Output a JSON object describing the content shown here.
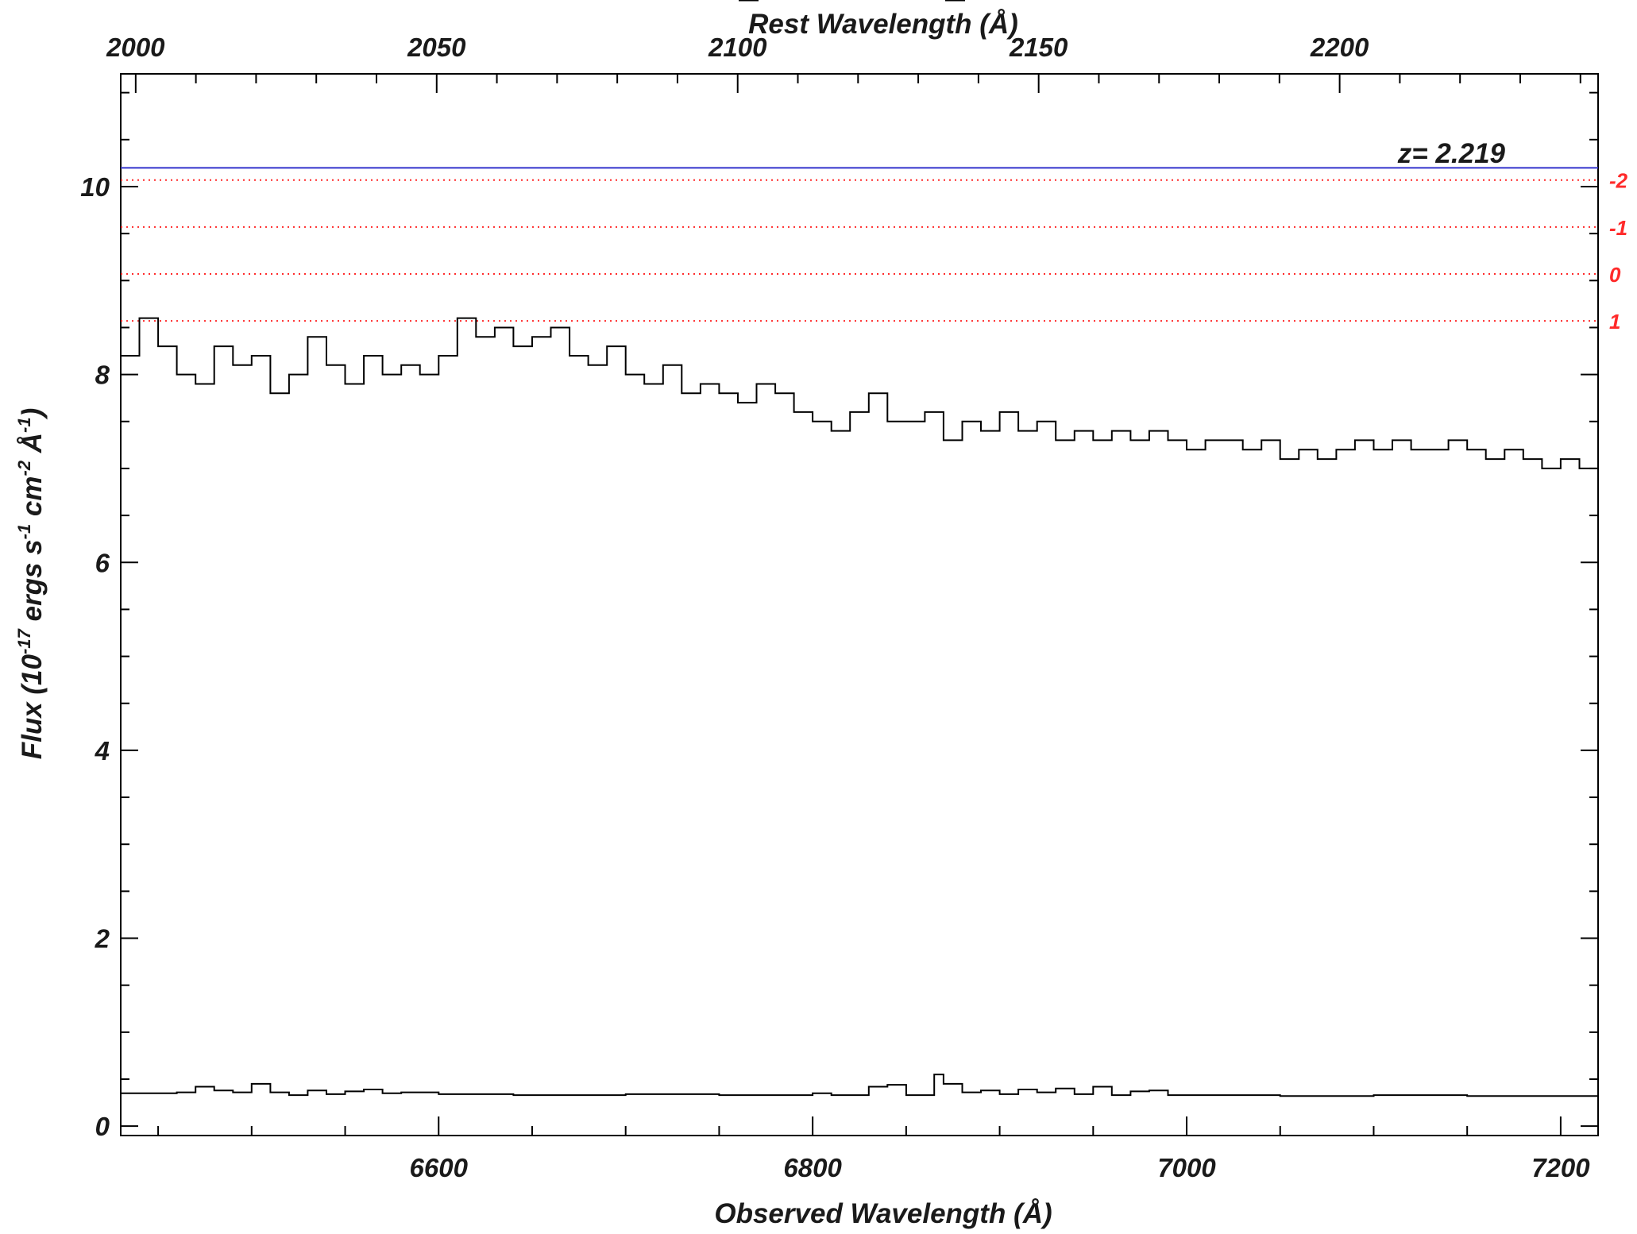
{
  "chart_data": {
    "type": "line",
    "x_top_label": "Rest Wavelength (Å)",
    "x_bottom_label": "Observed Wavelength (Å)",
    "y_label_parts": [
      "Flux (10",
      "-17",
      " ergs s",
      "-1",
      " cm",
      "-2",
      " Å",
      "-1",
      ")"
    ],
    "annotation": "z= 2.219",
    "redshift": 2.219,
    "xlim": [
      6430,
      7220
    ],
    "ylim": [
      -0.1,
      11.2
    ],
    "x_ticks_bottom": [
      6600,
      6800,
      7000,
      7200
    ],
    "x_ticks_top": [
      2000,
      2050,
      2100,
      2150,
      2200
    ],
    "y_ticks": [
      0,
      2,
      4,
      6,
      8,
      10
    ],
    "blue_line": {
      "y": 10.2,
      "color": "#3333cc"
    },
    "dotted_lines": [
      {
        "label": "-2",
        "y": 10.07
      },
      {
        "label": "-1",
        "y": 9.57
      },
      {
        "label": "0",
        "y": 9.07
      },
      {
        "label": "1",
        "y": 8.57
      }
    ],
    "dotted_color": "#ff2a2a",
    "series": [
      {
        "role": "flux",
        "color": "#000000",
        "x": [
          6430,
          6440,
          6450,
          6460,
          6470,
          6480,
          6490,
          6500,
          6510,
          6520,
          6530,
          6540,
          6550,
          6560,
          6570,
          6580,
          6590,
          6600,
          6610,
          6620,
          6630,
          6640,
          6650,
          6660,
          6670,
          6680,
          6690,
          6700,
          6710,
          6720,
          6730,
          6740,
          6750,
          6760,
          6770,
          6780,
          6790,
          6800,
          6810,
          6820,
          6830,
          6840,
          6850,
          6860,
          6870,
          6880,
          6890,
          6900,
          6910,
          6920,
          6930,
          6940,
          6950,
          6960,
          6970,
          6980,
          6990,
          7000,
          7010,
          7020,
          7030,
          7040,
          7050,
          7060,
          7070,
          7080,
          7090,
          7100,
          7110,
          7120,
          7130,
          7140,
          7150,
          7160,
          7170,
          7180,
          7190,
          7200,
          7210,
          7220
        ],
        "values": [
          8.2,
          8.6,
          8.3,
          8.0,
          7.9,
          8.3,
          8.1,
          8.2,
          7.8,
          8.0,
          8.4,
          8.1,
          7.9,
          8.2,
          8.0,
          8.1,
          8.0,
          8.2,
          8.6,
          8.4,
          8.5,
          8.3,
          8.4,
          8.5,
          8.2,
          8.1,
          8.3,
          8.0,
          7.9,
          8.1,
          7.8,
          7.9,
          7.8,
          7.7,
          7.9,
          7.8,
          7.6,
          7.5,
          7.4,
          7.6,
          7.8,
          7.5,
          7.5,
          7.6,
          7.3,
          7.5,
          7.4,
          7.6,
          7.4,
          7.5,
          7.3,
          7.4,
          7.3,
          7.4,
          7.3,
          7.4,
          7.3,
          7.2,
          7.3,
          7.3,
          7.2,
          7.3,
          7.1,
          7.2,
          7.1,
          7.2,
          7.3,
          7.2,
          7.3,
          7.2,
          7.2,
          7.3,
          7.2,
          7.1,
          7.2,
          7.1,
          7.0,
          7.1,
          7.0,
          7.2
        ]
      },
      {
        "role": "error",
        "color": "#000000",
        "x": [
          6430,
          6460,
          6470,
          6480,
          6490,
          6500,
          6510,
          6520,
          6530,
          6540,
          6550,
          6560,
          6570,
          6580,
          6600,
          6640,
          6700,
          6750,
          6780,
          6800,
          6810,
          6830,
          6840,
          6850,
          6860,
          6865,
          6870,
          6880,
          6890,
          6900,
          6910,
          6920,
          6930,
          6940,
          6950,
          6960,
          6970,
          6980,
          6990,
          7000,
          7050,
          7100,
          7150,
          7200,
          7220
        ],
        "values": [
          0.35,
          0.36,
          0.42,
          0.38,
          0.36,
          0.45,
          0.36,
          0.33,
          0.38,
          0.34,
          0.37,
          0.39,
          0.35,
          0.36,
          0.34,
          0.33,
          0.34,
          0.33,
          0.33,
          0.35,
          0.33,
          0.42,
          0.44,
          0.33,
          0.33,
          0.55,
          0.45,
          0.36,
          0.38,
          0.34,
          0.39,
          0.36,
          0.4,
          0.34,
          0.42,
          0.33,
          0.37,
          0.38,
          0.33,
          0.33,
          0.32,
          0.33,
          0.32,
          0.32,
          0.31
        ]
      }
    ]
  }
}
